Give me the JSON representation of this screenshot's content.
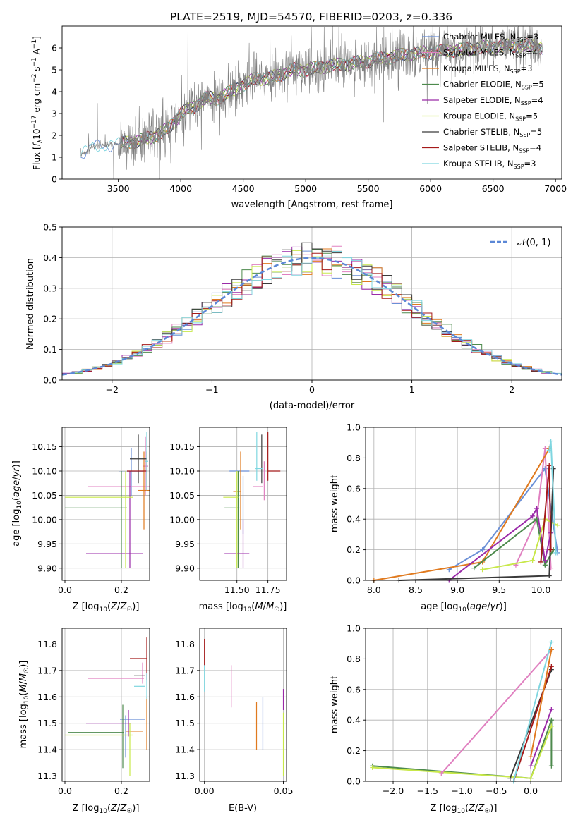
{
  "title": "PLATE=2519, MJD=54570, FIBERID=0203, z=0.336",
  "colors": {
    "chabrier_miles": "#6a8fd6",
    "salpeter_miles": "#e080c0",
    "kroupa_miles": "#e07a1f",
    "chabrier_elodie": "#4d8a4d",
    "salpeter_elodie": "#9a2aa8",
    "kroupa_elodie": "#c8e84a",
    "chabrier_stelib": "#3a3a3a",
    "salpeter_stelib": "#a51a1a",
    "kroupa_stelib": "#7fd6e0",
    "data": "#7f7f7f",
    "gaussian": "#5b87d6"
  },
  "chart_data": [
    {
      "id": "spectrum",
      "type": "line",
      "xlabel": "wavelength [Angstrom, rest frame]",
      "ylabel": "Flux [f_λ 10^-17 erg cm^-2 s^-1 A^-1]",
      "xlim": [
        3050,
        7050
      ],
      "ylim": [
        0,
        7
      ],
      "xticks": [
        3500,
        4000,
        4500,
        5000,
        5500,
        6000,
        6500,
        7000
      ],
      "yticks": [
        0,
        1,
        2,
        3,
        4,
        5,
        6
      ],
      "legend_position": "right",
      "legend": [
        {
          "label": "Chabrier MILES, N",
          "sub": "SSP",
          "suffix": "=3",
          "color_key": "chabrier_miles"
        },
        {
          "label": "Salpeter MILES, N",
          "sub": "SSP",
          "suffix": "=4",
          "color_key": "salpeter_miles"
        },
        {
          "label": "Kroupa MILES, N",
          "sub": "SSP",
          "suffix": "=3",
          "color_key": "kroupa_miles"
        },
        {
          "label": "Chabrier ELODIE, N",
          "sub": "SSP",
          "suffix": "=5",
          "color_key": "chabrier_elodie"
        },
        {
          "label": "Salpeter ELODIE, N",
          "sub": "SSP",
          "suffix": "=4",
          "color_key": "salpeter_elodie"
        },
        {
          "label": "Kroupa ELODIE, N",
          "sub": "SSP",
          "suffix": "=5",
          "color_key": "kroupa_elodie"
        },
        {
          "label": "Chabrier STELIB, N",
          "sub": "SSP",
          "suffix": "=5",
          "color_key": "chabrier_stelib"
        },
        {
          "label": "Salpeter STELIB, N",
          "sub": "SSP",
          "suffix": "=4",
          "color_key": "salpeter_stelib"
        },
        {
          "label": "Kroupa STELIB, N",
          "sub": "SSP",
          "suffix": "=3",
          "color_key": "kroupa_stelib"
        }
      ],
      "continuum": {
        "x": [
          3200,
          3300,
          3400,
          3500,
          3600,
          3700,
          3800,
          3900,
          4000,
          4100,
          4200,
          4300,
          4400,
          4500,
          4600,
          4700,
          4800,
          4900,
          5000,
          5200,
          5400,
          5600,
          5800,
          6000,
          6200,
          6400,
          6600,
          6800,
          6900
        ],
        "y": [
          1.1,
          1.5,
          1.55,
          1.6,
          1.7,
          1.8,
          2.0,
          2.3,
          3.0,
          3.3,
          3.7,
          3.7,
          4.0,
          4.3,
          4.6,
          4.6,
          4.8,
          5.0,
          5.0,
          5.2,
          5.3,
          5.5,
          5.7,
          5.8,
          5.9,
          6.0,
          6.1,
          6.1,
          6.0
        ]
      }
    },
    {
      "id": "residual-histogram",
      "type": "line",
      "xlabel": "(data-model)/error",
      "ylabel": "Normed distribution",
      "xlim": [
        -2.5,
        2.5
      ],
      "ylim": [
        0,
        0.5
      ],
      "xticks": [
        -2,
        -1,
        0,
        1,
        2
      ],
      "yticks": [
        0.0,
        0.1,
        0.2,
        0.3,
        0.4,
        0.5
      ],
      "legend": "𝒩(0, 1)",
      "legend_position": "upper right",
      "bin_width": 0.1
    },
    {
      "id": "age-vs-Z",
      "type": "scatter",
      "xlabel": "Z [log10(Z/Z⊙)]",
      "ylabel": "age [log10(age/yr)]",
      "xlim": [
        -0.01,
        0.3
      ],
      "ylim": [
        9.875,
        10.19
      ],
      "xticks": [
        0.0,
        0.2
      ],
      "yticks": [
        9.9,
        9.95,
        10.0,
        10.05,
        10.1,
        10.15
      ],
      "points": [
        {
          "color_key": "chabrier_miles",
          "x": 0.235,
          "xerr": 0.045,
          "y": 10.098,
          "yerr": 0.05
        },
        {
          "color_key": "salpeter_miles",
          "x": 0.285,
          "xerr": 0.01,
          "y": 10.11,
          "yerr": 0.06
        },
        {
          "color_key": "salpeter_miles",
          "x": 0.19,
          "xerr": 0.11,
          "y": 10.068,
          "yerr": 0.0
        },
        {
          "color_key": "kroupa_miles",
          "x": 0.28,
          "xerr": 0.02,
          "y": 10.06,
          "yerr": 0.08
        },
        {
          "color_key": "chabrier_elodie",
          "x": 0.11,
          "xerr": 0.11,
          "y": 10.024,
          "yerr": 0.0
        },
        {
          "color_key": "chabrier_elodie",
          "x": 0.2,
          "xerr": 0.0,
          "y": 10.0,
          "yerr": 0.1
        },
        {
          "color_key": "salpeter_elodie",
          "x": 0.175,
          "xerr": 0.1,
          "y": 9.93,
          "yerr": 0.0
        },
        {
          "color_key": "salpeter_elodie",
          "x": 0.23,
          "xerr": 0.0,
          "y": 10.0,
          "yerr": 0.1
        },
        {
          "color_key": "kroupa_elodie",
          "x": 0.12,
          "xerr": 0.12,
          "y": 10.046,
          "yerr": 0.0
        },
        {
          "color_key": "kroupa_elodie",
          "x": 0.215,
          "xerr": 0.0,
          "y": 10.0,
          "yerr": 0.1
        },
        {
          "color_key": "chabrier_stelib",
          "x": 0.26,
          "xerr": 0.03,
          "y": 10.125,
          "yerr": 0.05
        },
        {
          "color_key": "salpeter_stelib",
          "x": 0.255,
          "xerr": 0.035,
          "y": 10.1,
          "yerr": 0.0
        },
        {
          "color_key": "salpeter_stelib",
          "x": 0.29,
          "xerr": 0.0,
          "y": 10.1,
          "yerr": 0.04
        },
        {
          "color_key": "kroupa_stelib",
          "x": 0.29,
          "xerr": 0.005,
          "y": 10.12,
          "yerr": 0.06
        }
      ]
    },
    {
      "id": "age-vs-mass",
      "type": "scatter",
      "xlabel": "mass [log10(M/M⊙)]",
      "ylabel": "",
      "xlim": [
        11.2,
        11.9
      ],
      "ylim": [
        9.875,
        10.19
      ],
      "xticks": [
        11.5,
        11.75
      ],
      "yticks": [
        9.9,
        9.95,
        10.0,
        10.05,
        10.1,
        10.15
      ],
      "points": [
        {
          "color_key": "chabrier_miles",
          "x": 11.55,
          "xerr": 0.0,
          "y": 10.03,
          "yerr": 0.06
        },
        {
          "color_key": "chabrier_miles",
          "x": 11.52,
          "xerr": 0.08,
          "y": 10.1,
          "yerr": 0.0
        },
        {
          "color_key": "salpeter_miles",
          "x": 11.67,
          "xerr": 0.04,
          "y": 10.068,
          "yerr": 0.0
        },
        {
          "color_key": "salpeter_miles",
          "x": 11.72,
          "xerr": 0.0,
          "y": 10.08,
          "yerr": 0.04
        },
        {
          "color_key": "kroupa_miles",
          "x": 11.5,
          "xerr": 0.03,
          "y": 10.058,
          "yerr": 0.0
        },
        {
          "color_key": "kroupa_miles",
          "x": 11.53,
          "xerr": 0.0,
          "y": 10.06,
          "yerr": 0.08
        },
        {
          "color_key": "chabrier_elodie",
          "x": 11.46,
          "xerr": 0.06,
          "y": 10.024,
          "yerr": 0.0
        },
        {
          "color_key": "chabrier_elodie",
          "x": 11.51,
          "xerr": 0.0,
          "y": 10.0,
          "yerr": 0.1
        },
        {
          "color_key": "salpeter_elodie",
          "x": 11.5,
          "xerr": 0.1,
          "y": 9.93,
          "yerr": 0.0
        },
        {
          "color_key": "salpeter_elodie",
          "x": 11.55,
          "xerr": 0.0,
          "y": 9.95,
          "yerr": 0.05
        },
        {
          "color_key": "kroupa_elodie",
          "x": 11.45,
          "xerr": 0.06,
          "y": 10.046,
          "yerr": 0.0
        },
        {
          "color_key": "kroupa_elodie",
          "x": 11.5,
          "xerr": 0.0,
          "y": 10.0,
          "yerr": 0.1
        },
        {
          "color_key": "chabrier_stelib",
          "x": 11.7,
          "xerr": 0.0,
          "y": 10.125,
          "yerr": 0.05
        },
        {
          "color_key": "salpeter_stelib",
          "x": 11.8,
          "xerr": 0.05,
          "y": 10.1,
          "yerr": 0.0
        },
        {
          "color_key": "salpeter_stelib",
          "x": 11.75,
          "xerr": 0.0,
          "y": 10.13,
          "yerr": 0.05
        },
        {
          "color_key": "kroupa_stelib",
          "x": 11.68,
          "xerr": 0.03,
          "y": 10.105,
          "yerr": 0.0
        },
        {
          "color_key": "kroupa_stelib",
          "x": 11.66,
          "xerr": 0.0,
          "y": 10.13,
          "yerr": 0.05
        }
      ]
    },
    {
      "id": "mass-weight-vs-age",
      "type": "line",
      "xlabel": "age [log10(age/yr)]",
      "ylabel": "mass weight",
      "xlim": [
        7.9,
        10.25
      ],
      "ylim": [
        0,
        1.0
      ],
      "xticks": [
        8.0,
        8.5,
        9.0,
        9.5,
        10.0
      ],
      "yticks": [
        0.0,
        0.2,
        0.4,
        0.6,
        0.8,
        1.0
      ],
      "series": [
        {
          "color_key": "chabrier_miles",
          "x": [
            8.9,
            9.3,
            10.05,
            10.2
          ],
          "y": [
            0.07,
            0.2,
            0.73,
            0.18
          ]
        },
        {
          "color_key": "salpeter_miles",
          "x": [
            9.7,
            9.95,
            10.05,
            10.12
          ],
          "y": [
            0.1,
            0.4,
            0.86,
            0.08
          ]
        },
        {
          "color_key": "kroupa_miles",
          "x": [
            8.0,
            9.3,
            10.1
          ],
          "y": [
            0.0,
            0.12,
            0.86
          ]
        },
        {
          "color_key": "chabrier_elodie",
          "x": [
            9.2,
            9.95,
            10.05,
            10.15
          ],
          "y": [
            0.08,
            0.4,
            0.1,
            0.2
          ]
        },
        {
          "color_key": "salpeter_elodie",
          "x": [
            8.9,
            9.9,
            9.95,
            10.05,
            10.12
          ],
          "y": [
            0.0,
            0.42,
            0.47,
            0.13,
            0.31
          ]
        },
        {
          "color_key": "kroupa_elodie",
          "x": [
            9.3,
            9.9,
            10.05,
            10.2
          ],
          "y": [
            0.07,
            0.13,
            0.4,
            0.36
          ]
        },
        {
          "color_key": "chabrier_stelib",
          "x": [
            8.3,
            10.1,
            10.15
          ],
          "y": [
            0.0,
            0.03,
            0.73
          ]
        },
        {
          "color_key": "salpeter_stelib",
          "x": [
            10.0,
            10.1,
            10.12
          ],
          "y": [
            0.12,
            0.75,
            0.2
          ]
        },
        {
          "color_key": "kroupa_stelib",
          "x": [
            10.1,
            10.12,
            10.18
          ],
          "y": [
            0.85,
            0.91,
            0.18
          ]
        }
      ]
    },
    {
      "id": "mass-vs-Z",
      "type": "scatter",
      "xlabel": "Z [log10(Z/Z⊙)]",
      "ylabel": "mass [log10(M/M⊙)]",
      "xlim": [
        -0.01,
        0.3
      ],
      "ylim": [
        11.28,
        11.86
      ],
      "xticks": [
        0.0,
        0.2
      ],
      "yticks": [
        11.3,
        11.4,
        11.5,
        11.6,
        11.7,
        11.8
      ],
      "points": [
        {
          "color_key": "chabrier_miles",
          "x": 0.24,
          "xerr": 0.045,
          "y": 11.515,
          "yerr": 0.0
        },
        {
          "color_key": "chabrier_miles",
          "x": 0.215,
          "xerr": 0.0,
          "y": 11.45,
          "yerr": 0.08
        },
        {
          "color_key": "salpeter_miles",
          "x": 0.18,
          "xerr": 0.1,
          "y": 11.67,
          "yerr": 0.0
        },
        {
          "color_key": "salpeter_miles",
          "x": 0.275,
          "xerr": 0.0,
          "y": 11.69,
          "yerr": 0.04
        },
        {
          "color_key": "kroupa_miles",
          "x": 0.245,
          "xerr": 0.03,
          "y": 11.47,
          "yerr": 0.0
        },
        {
          "color_key": "kroupa_miles",
          "x": 0.29,
          "xerr": 0.0,
          "y": 11.5,
          "yerr": 0.1
        },
        {
          "color_key": "chabrier_elodie",
          "x": 0.11,
          "xerr": 0.1,
          "y": 11.465,
          "yerr": 0.0
        },
        {
          "color_key": "chabrier_elodie",
          "x": 0.205,
          "xerr": 0.0,
          "y": 11.45,
          "yerr": 0.12
        },
        {
          "color_key": "salpeter_elodie",
          "x": 0.155,
          "xerr": 0.08,
          "y": 11.5,
          "yerr": 0.0
        },
        {
          "color_key": "salpeter_elodie",
          "x": 0.225,
          "xerr": 0.0,
          "y": 11.5,
          "yerr": 0.05
        },
        {
          "color_key": "kroupa_elodie",
          "x": 0.12,
          "xerr": 0.12,
          "y": 11.455,
          "yerr": 0.0
        },
        {
          "color_key": "kroupa_elodie",
          "x": 0.23,
          "xerr": 0.0,
          "y": 11.4,
          "yerr": 0.1
        },
        {
          "color_key": "chabrier_stelib",
          "x": 0.265,
          "xerr": 0.02,
          "y": 11.68,
          "yerr": 0.0
        },
        {
          "color_key": "salpeter_stelib",
          "x": 0.26,
          "xerr": 0.03,
          "y": 11.745,
          "yerr": 0.0
        },
        {
          "color_key": "salpeter_stelib",
          "x": 0.29,
          "xerr": 0.0,
          "y": 11.745,
          "yerr": 0.08
        },
        {
          "color_key": "kroupa_stelib",
          "x": 0.265,
          "xerr": 0.02,
          "y": 11.64,
          "yerr": 0.0
        },
        {
          "color_key": "kroupa_stelib",
          "x": 0.29,
          "xerr": 0.0,
          "y": 11.64,
          "yerr": 0.05
        }
      ]
    },
    {
      "id": "mass-vs-EBV",
      "type": "scatter",
      "xlabel": "E(B-V)",
      "ylabel": "",
      "xlim": [
        -0.003,
        0.052
      ],
      "ylim": [
        11.28,
        11.86
      ],
      "xticks": [
        0.0,
        0.05
      ],
      "yticks": [
        11.3,
        11.4,
        11.5,
        11.6,
        11.7,
        11.8
      ],
      "points": [
        {
          "color_key": "salpeter_stelib",
          "x": 0.0,
          "xerr": 0.0,
          "y": 11.77,
          "yerr": 0.05
        },
        {
          "color_key": "kroupa_stelib",
          "x": 0.0,
          "xerr": 0.0,
          "y": 11.67,
          "yerr": 0.05
        },
        {
          "color_key": "salpeter_miles",
          "x": 0.017,
          "xerr": 0.0,
          "y": 11.64,
          "yerr": 0.08
        },
        {
          "color_key": "kroupa_miles",
          "x": 0.033,
          "xerr": 0.0,
          "y": 11.49,
          "yerr": 0.09
        },
        {
          "color_key": "chabrier_miles",
          "x": 0.037,
          "xerr": 0.0,
          "y": 11.5,
          "yerr": 0.1
        },
        {
          "color_key": "salpeter_elodie",
          "x": 0.05,
          "xerr": 0.0,
          "y": 11.59,
          "yerr": 0.04
        },
        {
          "color_key": "kroupa_elodie",
          "x": 0.05,
          "xerr": 0.0,
          "y": 11.42,
          "yerr": 0.12
        }
      ]
    },
    {
      "id": "mass-weight-vs-Z",
      "type": "line",
      "xlabel": "Z [log10(Z/Z⊙)]",
      "ylabel": "mass weight",
      "xlim": [
        -2.4,
        0.45
      ],
      "ylim": [
        0,
        1.0
      ],
      "xticks": [
        -2.0,
        -1.5,
        -1.0,
        -0.5,
        0.0
      ],
      "yticks": [
        0.0,
        0.2,
        0.4,
        0.6,
        0.8,
        1.0
      ],
      "series": [
        {
          "color_key": "chabrier_elodie",
          "x": [
            -2.3,
            0.0,
            0.3,
            0.3
          ],
          "y": [
            0.1,
            0.02,
            0.4,
            0.1
          ]
        },
        {
          "color_key": "kroupa_elodie",
          "x": [
            -2.3,
            0.0,
            0.3
          ],
          "y": [
            0.09,
            0.02,
            0.36
          ]
        },
        {
          "color_key": "salpeter_miles",
          "x": [
            -1.3,
            0.3
          ],
          "y": [
            0.05,
            0.86
          ]
        },
        {
          "color_key": "chabrier_stelib",
          "x": [
            -0.3,
            0.3
          ],
          "y": [
            0.02,
            0.73
          ]
        },
        {
          "color_key": "salpeter_stelib",
          "x": [
            -0.25,
            0.3
          ],
          "y": [
            0.0,
            0.75
          ]
        },
        {
          "color_key": "kroupa_stelib",
          "x": [
            -0.25,
            0.3
          ],
          "y": [
            0.0,
            0.91
          ]
        },
        {
          "color_key": "salpeter_elodie",
          "x": [
            0.0,
            0.3
          ],
          "y": [
            0.1,
            0.47
          ]
        },
        {
          "color_key": "kroupa_miles",
          "x": [
            0.0,
            0.3
          ],
          "y": [
            0.16,
            0.86
          ]
        }
      ]
    }
  ]
}
